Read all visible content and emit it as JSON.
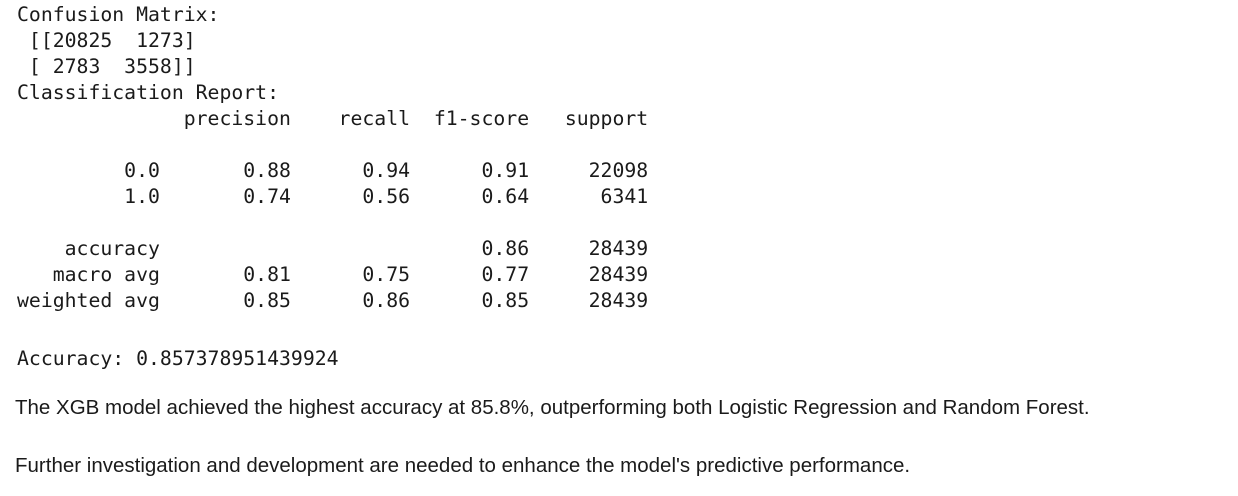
{
  "output": {
    "confusion_matrix_label": "Confusion Matrix:",
    "matrix_row_1": " [[20825  1273]",
    "matrix_row_2": " [ 2783  3558]]",
    "classification_report_label": "Classification Report:",
    "report_header": "              precision    recall  f1-score   support",
    "report_blank_1": "",
    "report_row_0": "         0.0       0.88      0.94      0.91     22098",
    "report_row_1": "         1.0       0.74      0.56      0.64      6341",
    "report_blank_2": "",
    "report_accuracy": "    accuracy                           0.86     28439",
    "report_macro": "   macro avg       0.81      0.75      0.77     28439",
    "report_weighted": "weighted avg       0.85      0.86      0.85     28439",
    "accuracy_line": "Accuracy: 0.857378951439924"
  },
  "text": {
    "paragraph_1": "The XGB model achieved the highest accuracy at 85.8%, outperforming both Logistic Regression and Random Forest.",
    "paragraph_2": "Further investigation and development are needed to enhance the model's predictive performance."
  }
}
